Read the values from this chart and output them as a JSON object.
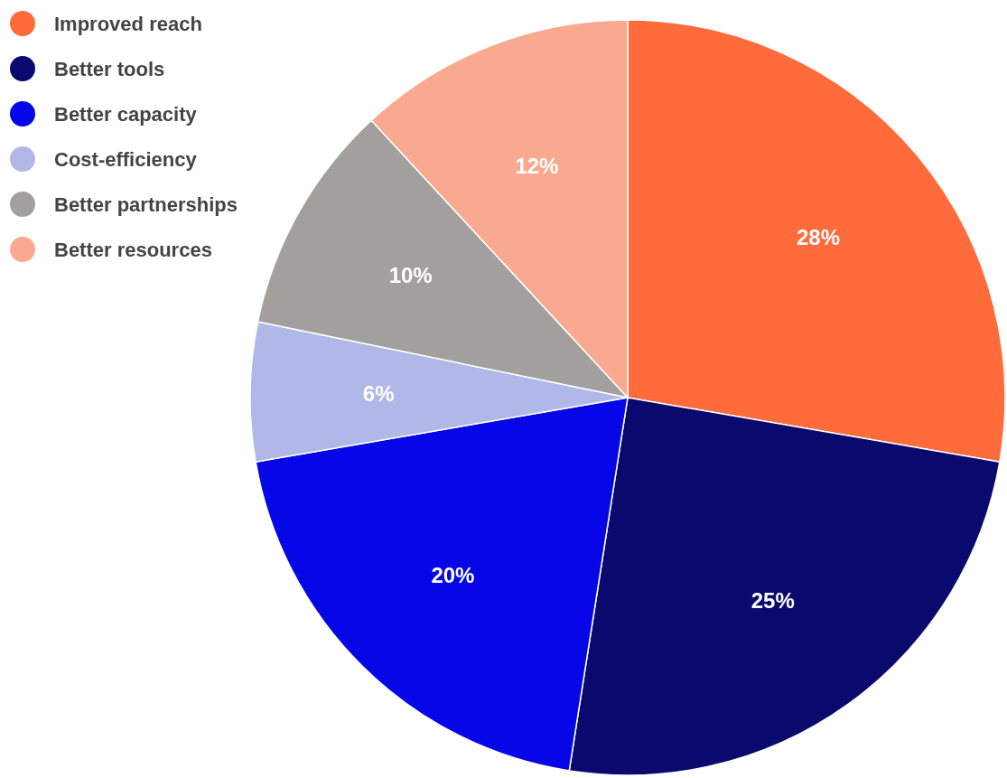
{
  "chart_data": {
    "type": "pie",
    "categories": [
      "Improved reach",
      "Better tools",
      "Better capacity",
      "Cost-efficiency",
      "Better partnerships",
      "Better resources"
    ],
    "values": [
      28,
      25,
      20,
      6,
      10,
      12
    ],
    "colors": [
      "#ff6b3a",
      "#0a0a6e",
      "#0606e6",
      "#b0b8e8",
      "#a39f9f",
      "#f9a98f"
    ],
    "value_labels": [
      "28%",
      "25%",
      "20%",
      "6%",
      "10%",
      "12%"
    ],
    "legend": "top left"
  }
}
